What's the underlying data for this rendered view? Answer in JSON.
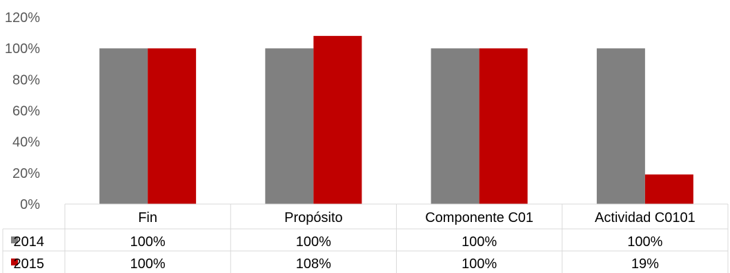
{
  "chart_data": {
    "type": "bar",
    "categories": [
      "Fin",
      "Propósito",
      "Componente C01",
      "Actividad C0101"
    ],
    "series": [
      {
        "name": "2014",
        "values": [
          100,
          100,
          100,
          100
        ],
        "labels": [
          "100%",
          "100%",
          "100%",
          "100%"
        ],
        "color": "#808080"
      },
      {
        "name": "2015",
        "values": [
          100,
          108,
          100,
          19
        ],
        "labels": [
          "100%",
          "108%",
          "100%",
          "19%"
        ],
        "color": "#c00000"
      }
    ],
    "ylim": [
      0,
      120
    ],
    "yticks": [
      0,
      20,
      40,
      60,
      80,
      100,
      120
    ],
    "ytick_labels": [
      "0%",
      "20%",
      "40%",
      "60%",
      "80%",
      "100%",
      "120%"
    ],
    "grid": false,
    "legend": "data-table",
    "data_table": true
  }
}
